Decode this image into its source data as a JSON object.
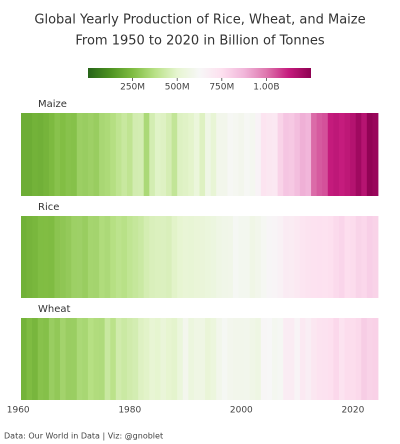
{
  "chart_data": {
    "type": "stripes",
    "title": "Global Yearly Production of Rice, Wheat, and Maize",
    "subtitle": "From 1950 to 2020 in Billion of Tonnes",
    "source": "Data: Our World in Data | Viz: @gnoblet",
    "x": [
      1961,
      1962,
      1963,
      1964,
      1965,
      1966,
      1967,
      1968,
      1969,
      1970,
      1971,
      1972,
      1973,
      1974,
      1975,
      1976,
      1977,
      1978,
      1979,
      1980,
      1981,
      1982,
      1983,
      1984,
      1985,
      1986,
      1987,
      1988,
      1989,
      1990,
      1991,
      1992,
      1993,
      1994,
      1995,
      1996,
      1997,
      1998,
      1999,
      2000,
      2001,
      2002,
      2003,
      2004,
      2005,
      2006,
      2007,
      2008,
      2009,
      2010,
      2011,
      2012,
      2013,
      2014,
      2015,
      2016,
      2017,
      2018,
      2019,
      2020,
      2021,
      2022,
      2023,
      2024
    ],
    "xlim": [
      1960.5,
      2024.5
    ],
    "xticks": [
      1960,
      1980,
      2000,
      2020
    ],
    "series": [
      {
        "name": "Maize",
        "values": [
          205,
          205,
          220,
          215,
          227,
          245,
          270,
          256,
          270,
          266,
          313,
          308,
          317,
          306,
          342,
          350,
          368,
          394,
          418,
          396,
          446,
          449,
          347,
          449,
          485,
          478,
          453,
          403,
          476,
          483,
          494,
          534,
          477,
          569,
          517,
          586,
          585,
          615,
          607,
          592,
          615,
          604,
          645,
          729,
          713,
          707,
          790,
          829,
          820,
          852,
          887,
          875,
          1016,
          1039,
          1052,
          1127,
          1140,
          1124,
          1141,
          1163,
          1210,
          1160,
          1240,
          1225
        ]
      },
      {
        "name": "Rice",
        "values": [
          216,
          227,
          235,
          253,
          254,
          251,
          277,
          285,
          295,
          316,
          318,
          307,
          334,
          332,
          357,
          349,
          370,
          387,
          376,
          397,
          410,
          424,
          450,
          465,
          469,
          471,
          465,
          488,
          507,
          519,
          517,
          526,
          530,
          540,
          547,
          568,
          577,
          579,
          611,
          599,
          598,
          571,
          587,
          608,
          634,
          641,
          657,
          689,
          686,
          701,
          723,
          733,
          740,
          742,
          740,
          751,
          769,
          782,
          755,
          763,
          787,
          776,
          800,
          790
        ]
      },
      {
        "name": "Wheat",
        "values": [
          222,
          251,
          233,
          270,
          264,
          308,
          292,
          328,
          309,
          310,
          347,
          341,
          370,
          359,
          356,
          419,
          382,
          440,
          424,
          440,
          449,
          478,
          489,
          512,
          500,
          529,
          504,
          495,
          537,
          592,
          545,
          563,
          565,
          527,
          543,
          585,
          613,
          593,
          587,
          585,
          590,
          574,
          560,
          633,
          626,
          603,
          612,
          683,
          687,
          641,
          700,
          672,
          713,
          733,
          739,
          749,
          773,
          733,
          759,
          760,
          771,
          808,
          790,
          795
        ]
      }
    ],
    "clim": [
      0,
      1250
    ],
    "cticks": [
      {
        "value": 250,
        "label": "250M"
      },
      {
        "value": 500,
        "label": "500M"
      },
      {
        "value": 750,
        "label": "750M"
      },
      {
        "value": 1000,
        "label": "1.00B"
      }
    ],
    "colorscale": [
      "#276419",
      "#4d9221",
      "#7fbc41",
      "#b8e186",
      "#e6f5d0",
      "#f7f7f7",
      "#fde0ef",
      "#f1b6da",
      "#de77ae",
      "#c51b7d",
      "#8e0152"
    ]
  }
}
